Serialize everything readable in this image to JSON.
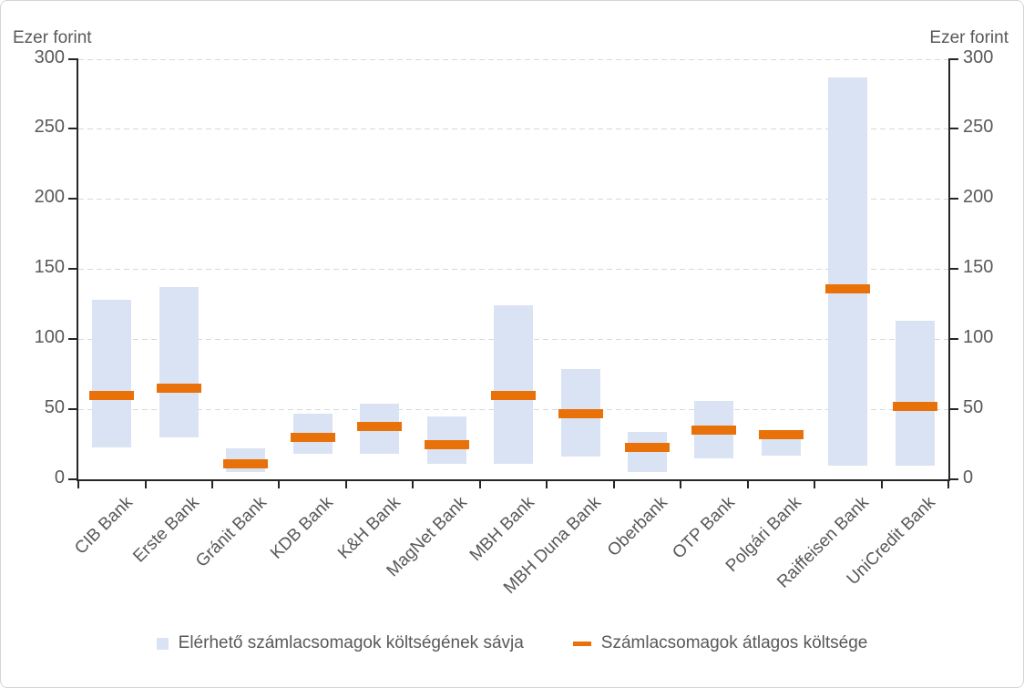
{
  "chart_data": {
    "type": "bar",
    "subtype": "floating-range-bars-with-average-markers",
    "title": "",
    "ylabel_left": "Ezer forint",
    "ylabel_right": "Ezer forint",
    "ylim": [
      0,
      300
    ],
    "yticks": [
      0,
      50,
      100,
      150,
      200,
      250,
      300
    ],
    "grid": "horizontal-dashed",
    "legend_position": "bottom",
    "categories": [
      "CIB Bank",
      "Erste Bank",
      "Gránit Bank",
      "KDB Bank",
      "K&H Bank",
      "MagNet Bank",
      "MBH Bank",
      "MBH Duna Bank",
      "Oberbank",
      "OTP Bank",
      "Polgári Bank",
      "Raiffeisen Bank",
      "UniCredit Bank"
    ],
    "series": [
      {
        "name": "Elérhető számlacsomagok költségének sávja",
        "role": "range",
        "color": "#dae3f3",
        "values_min": [
          23,
          30,
          5,
          18,
          18,
          11,
          11,
          16,
          5,
          15,
          17,
          10,
          10
        ],
        "values_max": [
          128,
          137,
          22,
          47,
          54,
          45,
          124,
          79,
          34,
          56,
          35,
          287,
          113
        ]
      },
      {
        "name": "Számlacsomagok átlagos költsége",
        "role": "average",
        "color": "#e8710a",
        "values": [
          60,
          65,
          11,
          30,
          38,
          25,
          60,
          47,
          23,
          35,
          32,
          136,
          52
        ]
      }
    ]
  },
  "colors": {
    "axis": "#262626",
    "text": "#595959",
    "gridline": "#d9d9d9",
    "range_fill": "#dae3f3",
    "average_fill": "#e8710a",
    "border": "#d4d4d4",
    "background": "#ffffff"
  }
}
